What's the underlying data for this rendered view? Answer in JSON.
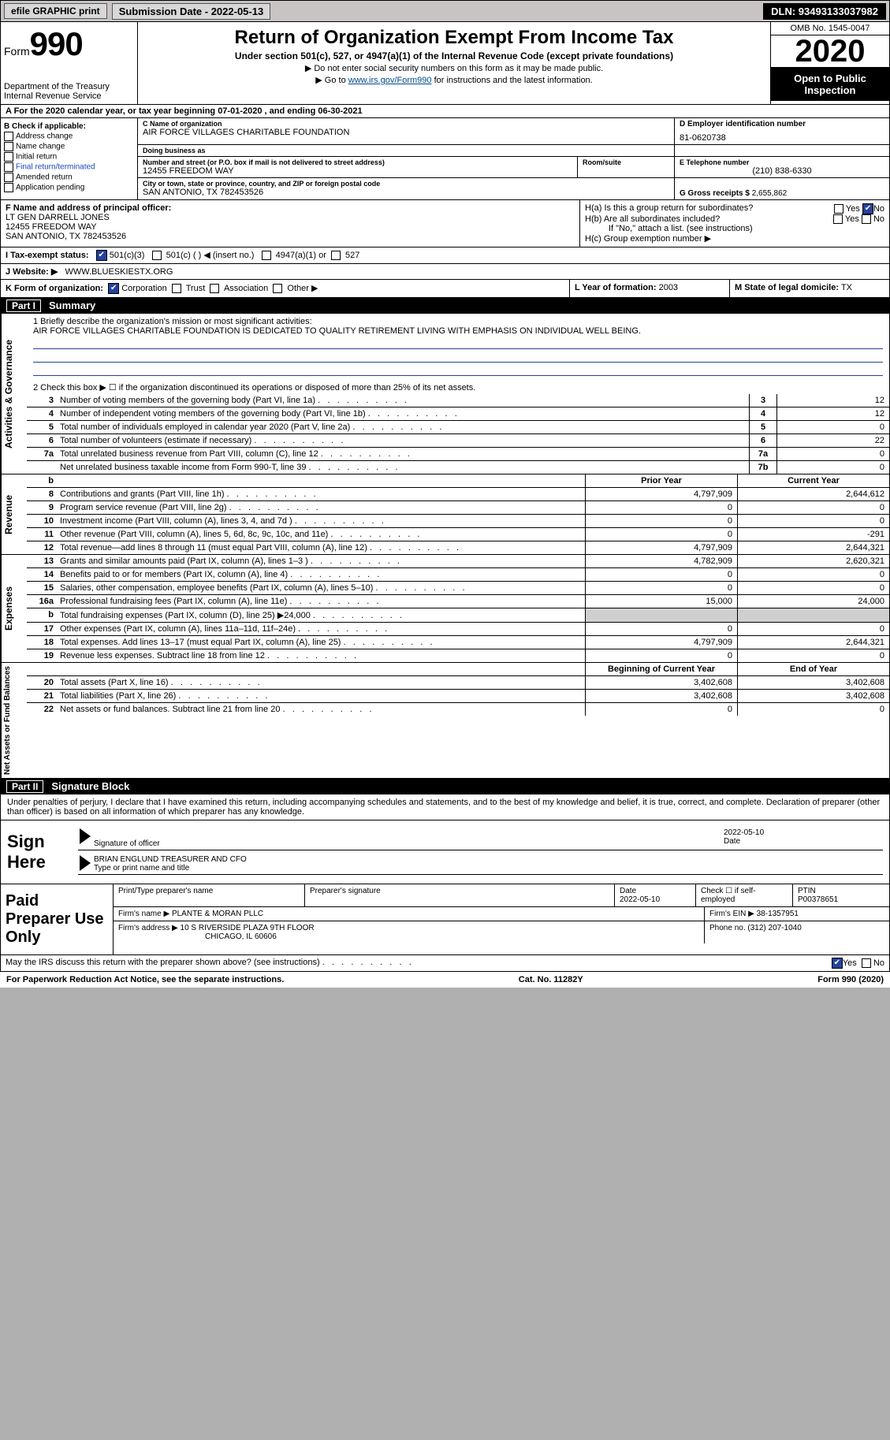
{
  "colors": {
    "bg": "#b0b0b0",
    "paper": "#ffffff",
    "black": "#000000",
    "link": "#2046b8",
    "check": "#25429c",
    "shade": "#cfcfcf",
    "topbar": "#c8c4c4"
  },
  "topbar": {
    "efile": "efile GRAPHIC print",
    "submission": "Submission Date - 2022-05-13",
    "dln": "DLN: 93493133037982"
  },
  "header": {
    "form_label": "Form",
    "form_num": "990",
    "dept": "Department of the Treasury\nInternal Revenue Service",
    "title": "Return of Organization Exempt From Income Tax",
    "subtitle": "Under section 501(c), 527, or 4947(a)(1) of the Internal Revenue Code (except private foundations)",
    "instr1": "▶ Do not enter social security numbers on this form as it may be made public.",
    "instr2_pre": "▶ Go to ",
    "instr2_link": "www.irs.gov/Form990",
    "instr2_post": " for instructions and the latest information.",
    "omb": "OMB No. 1545-0047",
    "year": "2020",
    "inspect": "Open to Public Inspection"
  },
  "row_a": "A For the 2020 calendar year, or tax year beginning 07-01-2020   , and ending 06-30-2021",
  "box_b": {
    "label": "B Check if applicable:",
    "items": [
      "Address change",
      "Name change",
      "Initial return",
      "Final return/terminated",
      "Amended return",
      "Application pending"
    ]
  },
  "box_c": {
    "name_lbl": "C Name of organization",
    "name": "AIR FORCE VILLAGES CHARITABLE FOUNDATION",
    "dba_lbl": "Doing business as",
    "dba": "",
    "addr_lbl": "Number and street (or P.O. box if mail is not delivered to street address)",
    "addr": "12455 FREEDOM WAY",
    "room_lbl": "Room/suite",
    "city_lbl": "City or town, state or province, country, and ZIP or foreign postal code",
    "city": "SAN ANTONIO, TX  782453526"
  },
  "box_d": {
    "lbl": "D Employer identification number",
    "val": "81-0620738"
  },
  "box_e": {
    "lbl": "E Telephone number",
    "val": "(210) 838-6330"
  },
  "box_g": {
    "lbl": "G Gross receipts $",
    "val": "2,655,862"
  },
  "box_f": {
    "lbl": "F Name and address of principal officer:",
    "name": "LT GEN DARRELL JONES",
    "addr1": "12455 FREEDOM WAY",
    "addr2": "SAN ANTONIO, TX   782453526"
  },
  "box_h": {
    "a_lbl": "H(a)  Is this a group return for subordinates?",
    "a_yes": "Yes",
    "a_no": "No",
    "b_lbl": "H(b)  Are all subordinates included?",
    "b_note": "If \"No,\" attach a list. (see instructions)",
    "c_lbl": "H(c)  Group exemption number ▶"
  },
  "box_i": {
    "lbl": "I   Tax-exempt status:",
    "opts": [
      "501(c)(3)",
      "501(c) (  ) ◀ (insert no.)",
      "4947(a)(1) or",
      "527"
    ]
  },
  "box_j": {
    "lbl": "J   Website: ▶",
    "val": "WWW.BLUESKIESTX.ORG"
  },
  "box_k": {
    "lbl": "K Form of organization:",
    "opts": [
      "Corporation",
      "Trust",
      "Association",
      "Other ▶"
    ]
  },
  "box_l": {
    "lbl": "L Year of formation:",
    "val": "2003"
  },
  "box_m": {
    "lbl": "M State of legal domicile:",
    "val": "TX"
  },
  "parts": {
    "p1": "Part I",
    "p1_title": "Summary",
    "p2": "Part II",
    "p2_title": "Signature Block"
  },
  "mission": {
    "lbl": "1   Briefly describe the organization's mission or most significant activities:",
    "txt": "AIR FORCE VILLAGES CHARITABLE FOUNDATION IS DEDICATED TO QUALITY RETIREMENT LIVING WITH EMPHASIS ON INDIVIDUAL WELL BEING."
  },
  "line2": "2   Check this box ▶ ☐  if the organization discontinued its operations or disposed of more than 25% of its net assets.",
  "vtabs": {
    "gov": "Activities & Governance",
    "rev": "Revenue",
    "exp": "Expenses",
    "net": "Net Assets or Fund Balances"
  },
  "gov_lines": [
    {
      "n": "3",
      "t": "Number of voting members of the governing body (Part VI, line 1a)",
      "b": "3",
      "v": "12"
    },
    {
      "n": "4",
      "t": "Number of independent voting members of the governing body (Part VI, line 1b)",
      "b": "4",
      "v": "12"
    },
    {
      "n": "5",
      "t": "Total number of individuals employed in calendar year 2020 (Part V, line 2a)",
      "b": "5",
      "v": "0"
    },
    {
      "n": "6",
      "t": "Total number of volunteers (estimate if necessary)",
      "b": "6",
      "v": "22"
    },
    {
      "n": "7a",
      "t": "Total unrelated business revenue from Part VIII, column (C), line 12",
      "b": "7a",
      "v": "0"
    },
    {
      "n": "",
      "t": "Net unrelated business taxable income from Form 990-T, line 39",
      "b": "7b",
      "v": "0"
    }
  ],
  "py_cy_hdr": {
    "b": "b",
    "py": "Prior Year",
    "cy": "Current Year"
  },
  "rev_lines": [
    {
      "n": "8",
      "t": "Contributions and grants (Part VIII, line 1h)",
      "py": "4,797,909",
      "cy": "2,644,612"
    },
    {
      "n": "9",
      "t": "Program service revenue (Part VIII, line 2g)",
      "py": "0",
      "cy": "0"
    },
    {
      "n": "10",
      "t": "Investment income (Part VIII, column (A), lines 3, 4, and 7d )",
      "py": "0",
      "cy": "0"
    },
    {
      "n": "11",
      "t": "Other revenue (Part VIII, column (A), lines 5, 6d, 8c, 9c, 10c, and 11e)",
      "py": "0",
      "cy": "-291"
    },
    {
      "n": "12",
      "t": "Total revenue—add lines 8 through 11 (must equal Part VIII, column (A), line 12)",
      "py": "4,797,909",
      "cy": "2,644,321"
    }
  ],
  "exp_lines": [
    {
      "n": "13",
      "t": "Grants and similar amounts paid (Part IX, column (A), lines 1–3 )",
      "py": "4,782,909",
      "cy": "2,620,321"
    },
    {
      "n": "14",
      "t": "Benefits paid to or for members (Part IX, column (A), line 4)",
      "py": "0",
      "cy": "0"
    },
    {
      "n": "15",
      "t": "Salaries, other compensation, employee benefits (Part IX, column (A), lines 5–10)",
      "py": "0",
      "cy": "0"
    },
    {
      "n": "16a",
      "t": "Professional fundraising fees (Part IX, column (A), line 11e)",
      "py": "15,000",
      "cy": "24,000"
    },
    {
      "n": "b",
      "t": "Total fundraising expenses (Part IX, column (D), line 25) ▶24,000",
      "py": "",
      "cy": "",
      "shade": true
    },
    {
      "n": "17",
      "t": "Other expenses (Part IX, column (A), lines 11a–11d, 11f–24e)",
      "py": "0",
      "cy": "0"
    },
    {
      "n": "18",
      "t": "Total expenses. Add lines 13–17 (must equal Part IX, column (A), line 25)",
      "py": "4,797,909",
      "cy": "2,644,321"
    },
    {
      "n": "19",
      "t": "Revenue less expenses. Subtract line 18 from line 12",
      "py": "0",
      "cy": "0"
    }
  ],
  "net_hdr": {
    "py": "Beginning of Current Year",
    "cy": "End of Year"
  },
  "net_lines": [
    {
      "n": "20",
      "t": "Total assets (Part X, line 16)",
      "py": "3,402,608",
      "cy": "3,402,608"
    },
    {
      "n": "21",
      "t": "Total liabilities (Part X, line 26)",
      "py": "3,402,608",
      "cy": "3,402,608"
    },
    {
      "n": "22",
      "t": "Net assets or fund balances. Subtract line 21 from line 20",
      "py": "0",
      "cy": "0"
    }
  ],
  "sig_decl": "Under penalties of perjury, I declare that I have examined this return, including accompanying schedules and statements, and to the best of my knowledge and belief, it is true, correct, and complete. Declaration of preparer (other than officer) is based on all information of which preparer has any knowledge.",
  "sign": {
    "here": "Sign Here",
    "sig_lbl": "Signature of officer",
    "date_lbl": "Date",
    "date": "2022-05-10",
    "name": "BRIAN ENGLUND  TREASURER AND CFO",
    "name_lbl": "Type or print name and title"
  },
  "prep": {
    "label": "Paid Preparer Use Only",
    "h1": "Print/Type preparer's name",
    "h2": "Preparer's signature",
    "h3": "Date",
    "h3v": "2022-05-10",
    "h4": "Check ☐ if self-employed",
    "h5": "PTIN",
    "h5v": "P00378651",
    "firm_lbl": "Firm's name    ▶",
    "firm": "PLANTE & MORAN PLLC",
    "ein_lbl": "Firm's EIN ▶",
    "ein": "38-1357951",
    "addr_lbl": "Firm's address ▶",
    "addr1": "10 S RIVERSIDE PLAZA 9TH FLOOR",
    "addr2": "CHICAGO, IL  60606",
    "phone_lbl": "Phone no.",
    "phone": "(312) 207-1040"
  },
  "discuss": "May the IRS discuss this return with the preparer shown above? (see instructions)",
  "discuss_yes": "Yes",
  "discuss_no": "No",
  "footer": {
    "left": "For Paperwork Reduction Act Notice, see the separate instructions.",
    "mid": "Cat. No. 11282Y",
    "right": "Form 990 (2020)"
  }
}
